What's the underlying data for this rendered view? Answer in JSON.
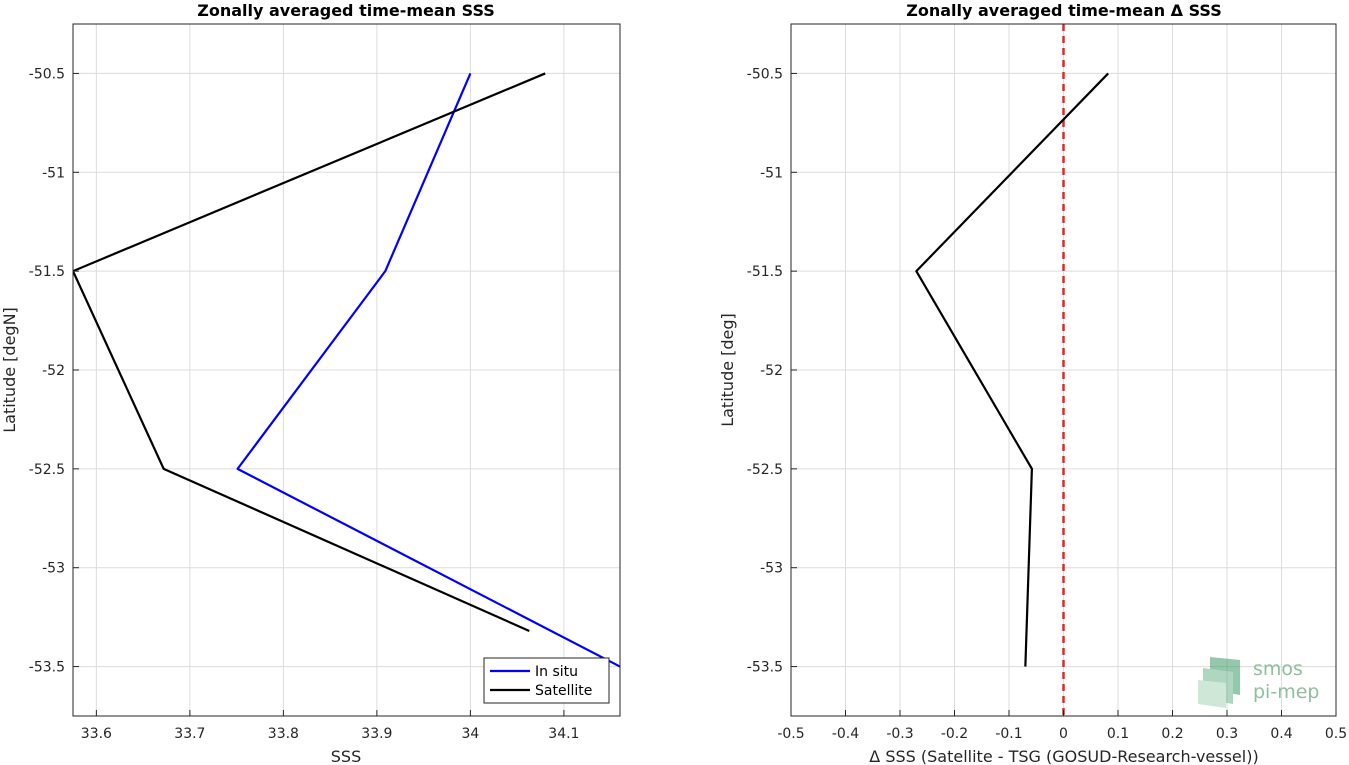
{
  "chart_data": [
    {
      "type": "line",
      "title": "Zonally averaged time-mean SSS",
      "xlabel": "SSS",
      "ylabel": "Latitude [degN]",
      "xlim": [
        33.575,
        34.16
      ],
      "ylim": [
        -53.75,
        -50.25
      ],
      "xticks": [
        "33.6",
        "33.7",
        "33.8",
        "33.9",
        "34",
        "34.1"
      ],
      "yticks": [
        "-50.5",
        "-51",
        "-51.5",
        "-52",
        "-52.5",
        "-53",
        "-53.5"
      ],
      "grid": true,
      "legend": "bottom-right",
      "series": [
        {
          "name": "In situ",
          "color": "#0000ff",
          "points": [
            [
              34.0,
              -50.5
            ],
            [
              33.909,
              -51.5
            ],
            [
              33.751,
              -52.5
            ],
            [
              34.16,
              -53.5
            ]
          ]
        },
        {
          "name": "Satellite",
          "color": "#000000",
          "points": [
            [
              34.08,
              -50.5
            ],
            [
              33.575,
              -51.5
            ],
            [
              33.672,
              -52.5
            ],
            [
              34.063,
              -53.32
            ]
          ]
        }
      ]
    },
    {
      "type": "line",
      "title": "Zonally averaged time-mean Δ SSS",
      "xlabel": "Δ SSS (Satellite - TSG (GOSUD-Research-vessel))",
      "ylabel": "Latitude [deg]",
      "xlim": [
        -0.5,
        0.5
      ],
      "ylim": [
        -53.75,
        -50.25
      ],
      "xticks": [
        "-0.5",
        "-0.4",
        "-0.3",
        "-0.2",
        "-0.1",
        "0",
        "0.1",
        "0.2",
        "0.3",
        "0.4",
        "0.5"
      ],
      "yticks": [
        "-50.5",
        "-51",
        "-51.5",
        "-52",
        "-52.5",
        "-53",
        "-53.5"
      ],
      "grid": true,
      "reference_line": {
        "x": 0,
        "color": "#e8262a",
        "style": "dashed"
      },
      "series": [
        {
          "color": "#000000",
          "points": [
            [
              0.082,
              -50.5
            ],
            [
              -0.27,
              -51.5
            ],
            [
              -0.058,
              -52.5
            ],
            [
              -0.07,
              -53.5
            ]
          ]
        }
      ]
    }
  ],
  "logo": {
    "line1": "smos",
    "line2": "pi-mep"
  }
}
